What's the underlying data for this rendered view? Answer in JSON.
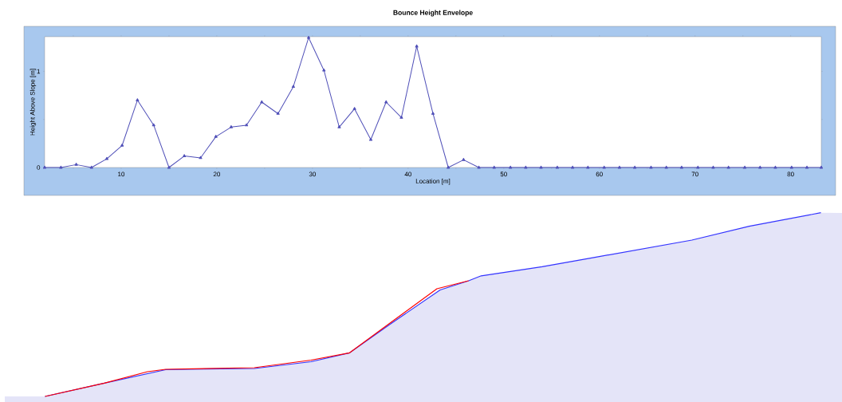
{
  "chart_data": {
    "type": "line",
    "title": "Bounce Height Envelope",
    "xlabel": "Location [m]",
    "ylabel": "Height Above Slope [m]",
    "xlim": [
      2,
      83.2
    ],
    "ylim": [
      0,
      1.36
    ],
    "xticks": [
      {
        "value": 5,
        "label": null
      },
      10,
      {
        "value": 15,
        "label": null
      },
      20,
      {
        "value": 25,
        "label": null
      },
      30,
      {
        "value": 35,
        "label": null
      },
      40,
      {
        "value": 45,
        "label": null
      },
      50,
      {
        "value": 55,
        "label": null
      },
      60,
      {
        "value": 65,
        "label": null
      },
      70,
      {
        "value": 75,
        "label": null
      },
      80
    ],
    "yticks": [
      0,
      {
        "value": 0.5,
        "label": null
      },
      1
    ],
    "marker": "triangle",
    "line_style": "solid",
    "series": [
      {
        "color": "#5050b8",
        "x": [
          2.0,
          3.7,
          5.3,
          6.9,
          8.5,
          10.1,
          11.7,
          13.4,
          15.0,
          16.6,
          18.3,
          19.9,
          21.5,
          23.1,
          24.7,
          26.4,
          28.0,
          29.6,
          31.2,
          32.8,
          34.4,
          36.1,
          37.7,
          39.3,
          40.9,
          42.6,
          44.2,
          45.8,
          47.4,
          49.0,
          50.7,
          52.3,
          53.9,
          55.6,
          57.2,
          58.8,
          60.5,
          62.1,
          63.7,
          65.4,
          67.0,
          68.6,
          70.3,
          71.9,
          73.5,
          75.2,
          76.8,
          78.4,
          80.1,
          81.7,
          83.2
        ],
        "values": [
          0,
          0,
          0.03,
          0,
          0.09,
          0.23,
          0.7,
          0.44,
          0,
          0.12,
          0.1,
          0.32,
          0.42,
          0.44,
          0.68,
          0.56,
          0.84,
          1.35,
          1.01,
          0.42,
          0.61,
          0.29,
          0.68,
          0.52,
          1.26,
          0.56,
          0,
          0.08,
          0,
          0,
          0,
          0,
          0,
          0,
          0,
          0,
          0,
          0,
          0,
          0,
          0,
          0,
          0,
          0,
          0,
          0,
          0,
          0,
          0,
          0,
          0
        ]
      }
    ]
  }
}
